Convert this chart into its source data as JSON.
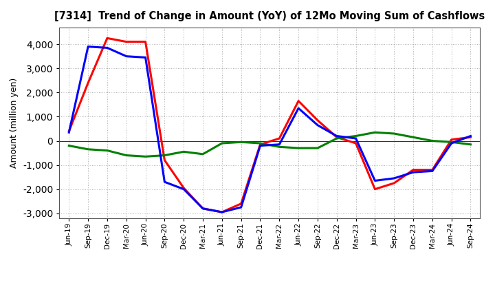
{
  "title": "[7314]  Trend of Change in Amount (YoY) of 12Mo Moving Sum of Cashflows",
  "ylabel": "Amount (million yen)",
  "x_labels": [
    "Jun-19",
    "Sep-19",
    "Dec-19",
    "Mar-20",
    "Jun-20",
    "Sep-20",
    "Dec-20",
    "Mar-21",
    "Jun-21",
    "Sep-21",
    "Dec-21",
    "Mar-22",
    "Jun-22",
    "Sep-22",
    "Dec-22",
    "Mar-23",
    "Jun-23",
    "Sep-23",
    "Dec-23",
    "Mar-24",
    "Jun-24",
    "Sep-24"
  ],
  "operating_cashflow": [
    400,
    2400,
    4250,
    4100,
    4100,
    -800,
    -1950,
    -2800,
    -2950,
    -2600,
    -150,
    100,
    1650,
    850,
    150,
    -100,
    -2000,
    -1750,
    -1200,
    -1200,
    50,
    150
  ],
  "investing_cashflow": [
    -200,
    -350,
    -400,
    -600,
    -650,
    -600,
    -450,
    -550,
    -100,
    -50,
    -100,
    -250,
    -300,
    -300,
    100,
    200,
    350,
    300,
    150,
    0,
    -50,
    -150
  ],
  "free_cashflow": [
    350,
    3900,
    3850,
    3500,
    3450,
    -1700,
    -2000,
    -2800,
    -2950,
    -2750,
    -200,
    -150,
    1350,
    650,
    200,
    100,
    -1650,
    -1550,
    -1300,
    -1250,
    -100,
    200
  ],
  "ylim": [
    -3200,
    4700
  ],
  "yticks": [
    -3000,
    -2000,
    -1000,
    0,
    1000,
    2000,
    3000,
    4000
  ],
  "operating_color": "#ff0000",
  "investing_color": "#008000",
  "free_color": "#0000ff",
  "line_width": 2.2,
  "bg_color": "#ffffff",
  "plot_bg_color": "#ffffff",
  "grid_color": "#999999"
}
